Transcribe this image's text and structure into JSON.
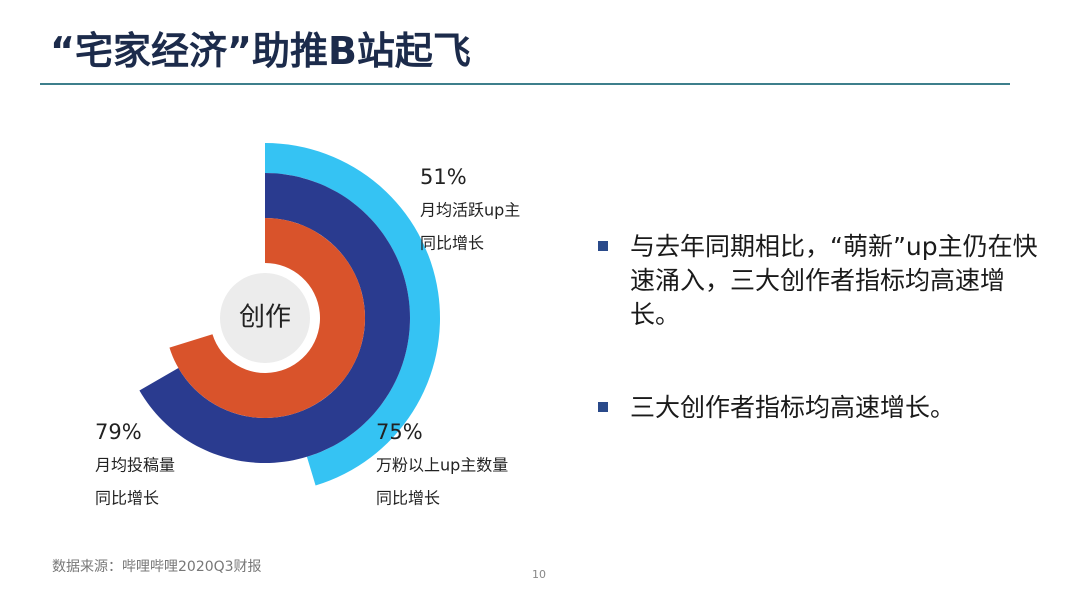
{
  "header": {
    "title": "“宅家经济”助推B站起飞"
  },
  "chart_data": {
    "type": "radial-bar",
    "center_label": "创作",
    "categories": [
      "月均活跃up主",
      "万粉以上up主数量",
      "月均投稿量"
    ],
    "notes": [
      "同比增长",
      "同比增长",
      "同比增长"
    ],
    "values": [
      51,
      75,
      79
    ],
    "value_labels": [
      "51%",
      "75%",
      "79%"
    ],
    "colors": [
      "#35c3f3",
      "#2a3b8f",
      "#d9532b"
    ]
  },
  "bullets": [
    "与去年同期相比，“萌新”up主仍在快速涌入，三大创作者指标均高速增长。",
    "三大创作者指标均高速增长。"
  ],
  "footer": {
    "source": "数据来源：哔哩哔哩2020Q3财报",
    "page": "10"
  }
}
